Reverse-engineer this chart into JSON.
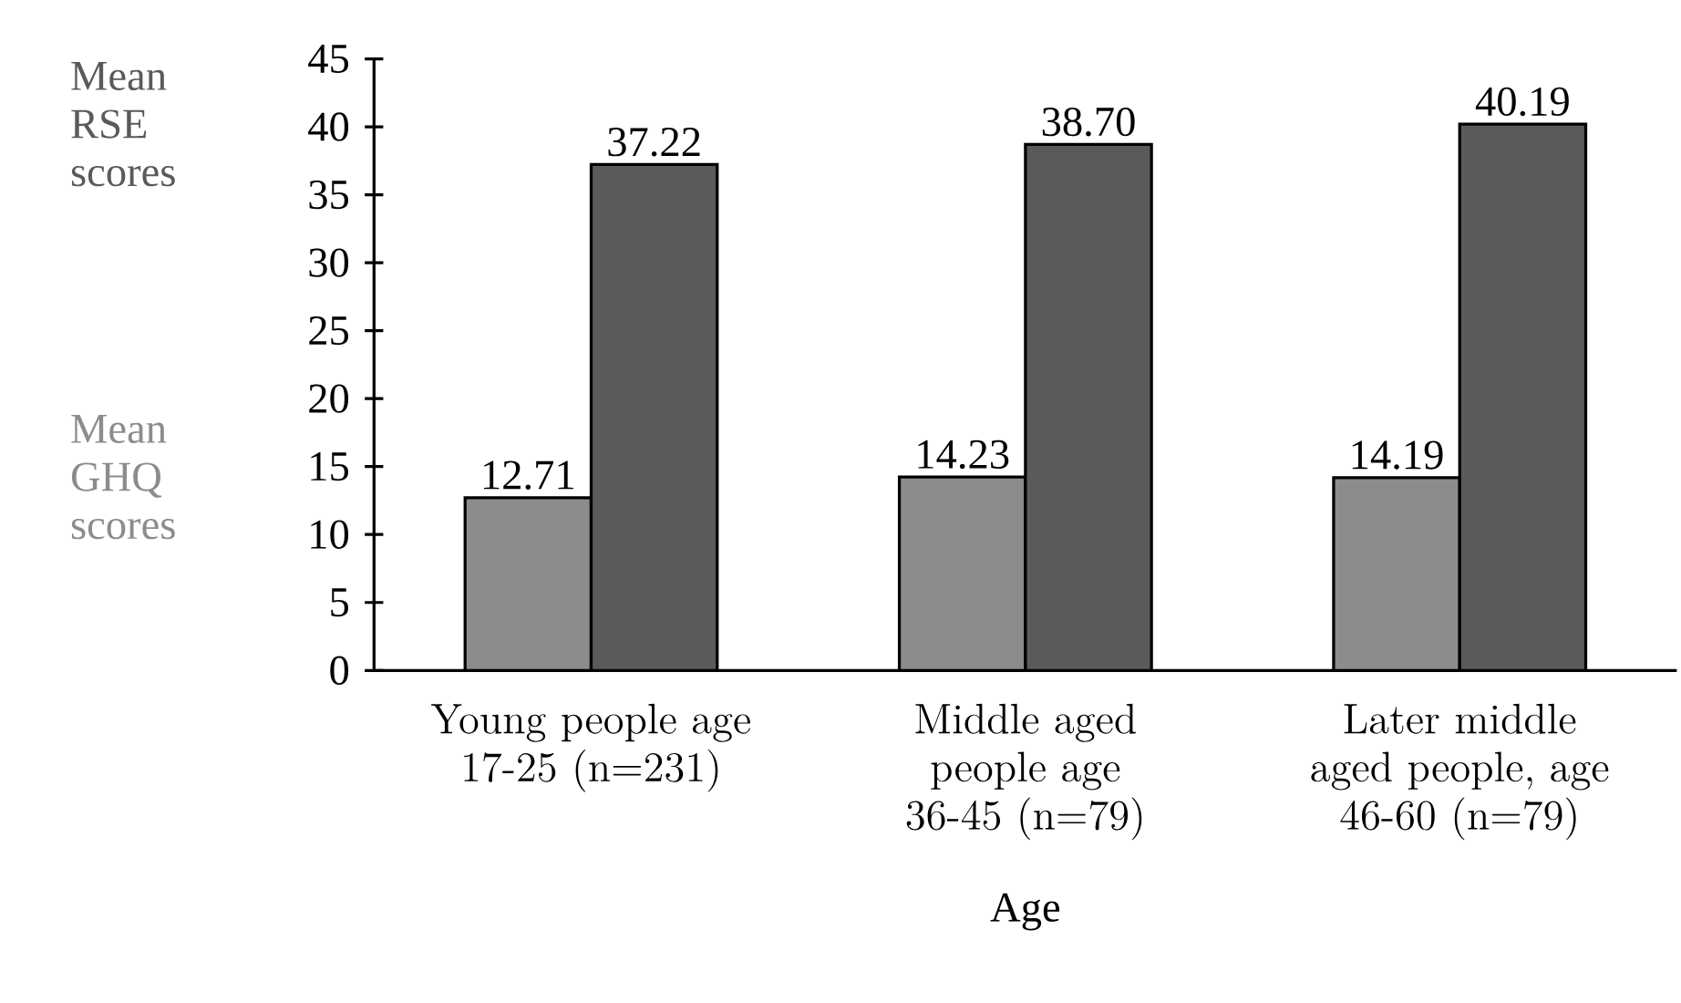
{
  "chart_data": {
    "type": "bar",
    "xlabel": "Age",
    "categories": [
      "Young people age 17-25 (n=231)",
      "Middle aged people age 36-45 (n=79)",
      "Later middle aged people, age 46-60 (n=79)"
    ],
    "series": [
      {
        "name": "Mean GHQ scores",
        "color": "#8c8c8c",
        "values": [
          12.71,
          14.23,
          14.19
        ],
        "value_labels": [
          "12.71",
          "14.23",
          "14.19"
        ]
      },
      {
        "name": "Mean RSE scores",
        "color": "#5a5a5a",
        "values": [
          37.22,
          38.7,
          40.19
        ],
        "value_labels": [
          "37.22",
          "38.70",
          "40.19"
        ]
      }
    ],
    "ylim": [
      0,
      45
    ],
    "yticks": [
      0,
      5,
      10,
      15,
      20,
      25,
      30,
      35,
      40,
      45
    ],
    "grid": false
  }
}
